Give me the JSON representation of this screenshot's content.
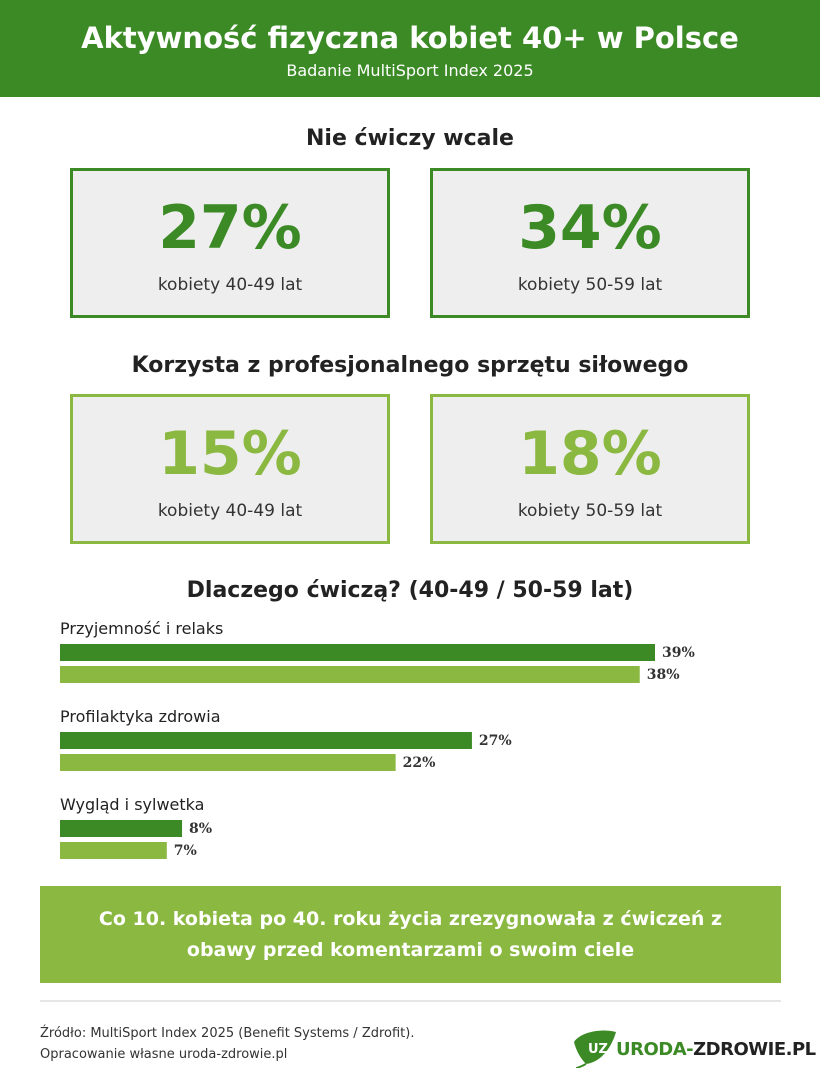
{
  "header": {
    "title": "Aktywność fizyczna kobiet 40+ w Polsce",
    "subtitle": "Badanie MultiSport Index 2025"
  },
  "section1": {
    "heading": "Nie ćwiczy wcale",
    "stats": [
      {
        "value": "27%",
        "label": "kobiety 40-49 lat"
      },
      {
        "value": "34%",
        "label": "kobiety 50-59 lat"
      }
    ]
  },
  "section2": {
    "heading": "Korzysta z profesjonalnego sprzętu siłowego",
    "stats": [
      {
        "value": "15%",
        "label": "kobiety 40-49 lat"
      },
      {
        "value": "18%",
        "label": "kobiety 50-59 lat"
      }
    ]
  },
  "chart_data": {
    "type": "bar",
    "orientation": "horizontal",
    "title": "Dlaczego ćwiczą? (40-49 / 50-59 lat)",
    "categories": [
      "Przyjemność i relaks",
      "Profilaktyka zdrowia",
      "Wygląd i sylwetka"
    ],
    "series": [
      {
        "values": [
          39,
          27,
          8
        ],
        "color": "#3b8a25"
      },
      {
        "values": [
          38,
          22,
          7
        ],
        "color": "#8ab840"
      }
    ],
    "value_suffix": "%",
    "data_labels": true
  },
  "banner": {
    "text": "Co 10. kobieta po 40. roku życia zrezygnowała z ćwiczeń z obawy przed komentarzami o swoim ciele"
  },
  "footer": {
    "source": "Źródło: MultiSport Index 2025 (Benefit Systems / Zdrofit).",
    "credit": "Opracowanie własne uroda-zdrowie.pl",
    "logo_mark": "UZ",
    "logo_part1": "URODA-",
    "logo_part2": "ZDROWIE.PL"
  },
  "colors": {
    "primary": "#3b8a25",
    "secondary": "#8ab840",
    "box_background": "#eeeeee"
  }
}
